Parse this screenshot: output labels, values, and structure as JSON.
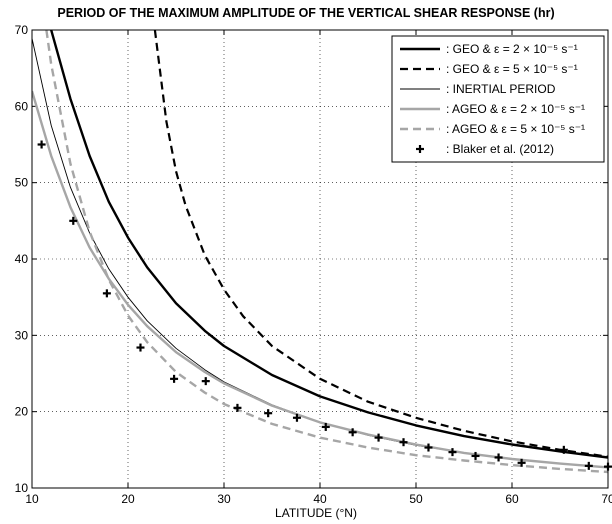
{
  "chart_data": {
    "type": "line",
    "title": "PERIOD OF THE MAXIMUM AMPLITUDE OF THE VERTICAL SHEAR RESPONSE (hr)",
    "xlabel": "LATITUDE (°N)",
    "ylabel": "",
    "xlim": [
      10,
      70
    ],
    "ylim": [
      10,
      70
    ],
    "xticks": [
      10,
      20,
      30,
      40,
      50,
      60,
      70
    ],
    "yticks": [
      10,
      20,
      30,
      40,
      50,
      60,
      70
    ],
    "grid": true,
    "legend_position": "top-right",
    "series": [
      {
        "name": "GEO & ε = 2 × 10⁻⁵ s⁻¹",
        "style": "solid-thick-black",
        "x": [
          12,
          14,
          16,
          18,
          20,
          22,
          25,
          28,
          30,
          35,
          40,
          45,
          50,
          55,
          60,
          65,
          70
        ],
        "y": [
          70,
          61,
          53.5,
          47.5,
          42.8,
          38.9,
          34.2,
          30.6,
          28.6,
          24.8,
          22.0,
          19.9,
          18.2,
          16.8,
          15.7,
          14.8,
          14.0
        ]
      },
      {
        "name": "GEO & ε = 5 × 10⁻⁵ s⁻¹",
        "style": "dashed-thick-black",
        "x": [
          22.8,
          24,
          25,
          26,
          28,
          30,
          32,
          35,
          40,
          45,
          50,
          55,
          60,
          65,
          70
        ],
        "y": [
          70,
          58,
          51.5,
          47,
          40.5,
          36.0,
          32.5,
          28.6,
          24.3,
          21.3,
          19.2,
          17.5,
          16.1,
          15.0,
          14.1
        ]
      },
      {
        "name": "INERTIAL PERIOD",
        "style": "solid-thin-black",
        "x": [
          10,
          12,
          14,
          16,
          18,
          20,
          22,
          25,
          28,
          30,
          35,
          40,
          45,
          50,
          55,
          60,
          65,
          70
        ],
        "y": [
          68.9,
          57.5,
          49.4,
          43.4,
          38.7,
          35.0,
          31.9,
          28.3,
          25.5,
          23.9,
          20.9,
          18.6,
          16.9,
          15.6,
          14.6,
          13.8,
          13.2,
          12.7
        ]
      },
      {
        "name": "AGEO & ε = 2 × 10⁻⁵ s⁻¹",
        "style": "solid-thick-gray",
        "x": [
          10,
          12,
          14,
          16,
          18,
          20,
          22,
          25,
          28,
          30,
          35,
          40,
          45,
          50,
          55,
          60,
          65,
          70
        ],
        "y": [
          62,
          53.5,
          46.8,
          41.5,
          37.4,
          34.0,
          31.2,
          27.8,
          25.2,
          23.7,
          20.8,
          18.6,
          17.0,
          15.7,
          14.6,
          13.8,
          13.2,
          12.7
        ]
      },
      {
        "name": "AGEO & ε = 5 × 10⁻⁵ s⁻¹",
        "style": "dashed-thick-gray",
        "x": [
          11.5,
          12,
          14,
          16,
          18,
          20,
          22,
          25,
          28,
          30,
          35,
          40,
          45,
          50,
          55,
          60,
          65,
          70
        ],
        "y": [
          70,
          65.5,
          52.5,
          43.6,
          37.3,
          32.6,
          29.1,
          25.2,
          22.5,
          21.0,
          18.4,
          16.6,
          15.3,
          14.3,
          13.6,
          13.0,
          12.5,
          12.1
        ]
      },
      {
        "name": "Blaker et al. (2012)",
        "style": "plus-markers-black",
        "x": [
          11,
          14.3,
          17.8,
          21.3,
          24.8,
          28.1,
          31.4,
          34.6,
          37.6,
          40.6,
          43.4,
          46.1,
          48.7,
          51.3,
          53.8,
          56.2,
          58.6,
          61,
          65.4,
          68,
          70
        ],
        "y": [
          55,
          45,
          35.5,
          28.4,
          24.3,
          24,
          20.5,
          19.8,
          19.2,
          18,
          17.3,
          16.6,
          16,
          15.3,
          14.7,
          14.2,
          14,
          13.3,
          15,
          12.9,
          12.8
        ]
      }
    ]
  }
}
